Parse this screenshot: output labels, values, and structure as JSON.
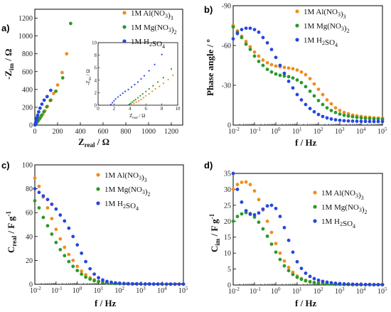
{
  "figure": {
    "panels": [
      "a)",
      "b)",
      "c)",
      "d)"
    ]
  },
  "colors": {
    "al": "#f28c1e",
    "mg": "#2a9a2a",
    "h2so4": "#2746e0"
  },
  "chart_data": [
    {
      "id": "a",
      "type": "scatter",
      "xlabel": "Z_real / Ω",
      "ylabel": "-Z_im / Ω",
      "xlim": [
        0,
        1300
      ],
      "ylim": [
        0,
        1300
      ],
      "xticks": [
        0,
        200,
        400,
        600,
        800,
        1000,
        1200
      ],
      "yticks": [
        0,
        200,
        400,
        600,
        800,
        1000,
        1200
      ],
      "legend": "top-right",
      "series": [
        {
          "name": "1M Al(NO3)3",
          "color": "#f28c1e",
          "x": [
            2,
            6,
            12,
            20,
            30,
            42,
            55,
            70,
            88,
            110,
            135,
            165,
            200,
            240,
            280
          ],
          "y": [
            2,
            8,
            18,
            32,
            48,
            68,
            92,
            122,
            160,
            210,
            275,
            355,
            450,
            590,
            800
          ]
        },
        {
          "name": "1M Mg(NO3)2",
          "color": "#2a9a2a",
          "x": [
            2,
            5,
            9,
            15,
            22,
            32,
            44,
            60,
            80,
            105,
            140,
            185,
            245,
            315
          ],
          "y": [
            2,
            7,
            14,
            26,
            40,
            58,
            80,
            110,
            150,
            205,
            280,
            380,
            530,
            1140
          ]
        },
        {
          "name": "1M H2SO4",
          "color": "#2746e0",
          "x": [
            2,
            4,
            6,
            9,
            13,
            18,
            25,
            34,
            46,
            62,
            82,
            108,
            140
          ],
          "y": [
            3,
            10,
            20,
            35,
            55,
            80,
            110,
            148,
            190,
            235,
            280,
            320,
            390
          ]
        }
      ],
      "inset": {
        "xlabel": "Z_real / Ω",
        "ylabel": "-Z_im / Ω",
        "xlim": [
          0,
          10
        ],
        "ylim": [
          0,
          10
        ],
        "xticks": [
          0,
          2,
          4,
          6,
          8,
          10
        ],
        "yticks": [
          0,
          2,
          4,
          6,
          8,
          10
        ],
        "series": [
          {
            "name": "1M Al(NO3)3",
            "color": "#f28c1e",
            "x": [
              4.2,
              4.5,
              4.8,
              5.1,
              5.4,
              5.7,
              6.0,
              6.4,
              6.8,
              7.2,
              7.7,
              8.2,
              8.8,
              9.4
            ],
            "y": [
              0.1,
              0.3,
              0.5,
              0.7,
              0.9,
              1.2,
              1.5,
              1.8,
              2.2,
              2.6,
              3.0,
              3.5,
              4.1,
              4.8
            ]
          },
          {
            "name": "1M Mg(NO3)2",
            "color": "#2a9a2a",
            "x": [
              3.9,
              4.1,
              4.3,
              4.5,
              4.7,
              5.0,
              5.3,
              5.6,
              6.0,
              6.4,
              6.9,
              7.5,
              8.2,
              9.2
            ],
            "y": [
              0.1,
              0.3,
              0.5,
              0.7,
              0.9,
              1.2,
              1.5,
              1.8,
              2.2,
              2.6,
              3.1,
              3.7,
              4.4,
              5.8
            ]
          },
          {
            "name": "1M H2SO4",
            "color": "#2746e0",
            "x": [
              1.6,
              1.8,
              2.0,
              2.2,
              2.5,
              2.8,
              3.1,
              3.4,
              3.8,
              4.2,
              4.6,
              5.0,
              5.4,
              5.8,
              6.4,
              7.1,
              8.0
            ],
            "y": [
              0.1,
              0.4,
              0.7,
              1.0,
              1.3,
              1.6,
              1.9,
              2.2,
              2.5,
              2.9,
              3.3,
              3.7,
              4.2,
              4.7,
              5.5,
              6.5,
              8.1
            ]
          }
        ]
      }
    },
    {
      "id": "b",
      "type": "scatter",
      "xscale": "log",
      "xlabel": "f / Hz",
      "ylabel": "Phase angle / º",
      "xlim": [
        0.01,
        100000
      ],
      "ylim": [
        0,
        -90
      ],
      "yticks": [
        0,
        -30,
        -60,
        -90
      ],
      "legend": "top-right",
      "series": [
        {
          "name": "1M Al(NO3)3",
          "color": "#f28c1e",
          "x": [
            0.01,
            0.0158,
            0.025,
            0.04,
            0.063,
            0.1,
            0.158,
            0.25,
            0.4,
            0.63,
            1,
            1.58,
            2.5,
            4,
            6.3,
            10,
            15.8,
            25,
            40,
            63,
            100,
            158,
            251,
            398,
            631,
            1000,
            1585,
            2512,
            3981,
            6310,
            10000,
            15849,
            25119,
            39811,
            63096,
            100000
          ],
          "y": [
            -75,
            -71,
            -67,
            -63,
            -59,
            -55,
            -52,
            -49,
            -47,
            -45.5,
            -44.5,
            -44,
            -43.5,
            -43,
            -42.5,
            -41.5,
            -40,
            -38,
            -35,
            -31,
            -27,
            -23,
            -19,
            -16,
            -13,
            -11,
            -9.5,
            -8.5,
            -7.5,
            -7,
            -6.5,
            -6,
            -5.8,
            -5.5,
            -5.3,
            -5.2
          ]
        },
        {
          "name": "1M Mg(NO3)2",
          "color": "#2a9a2a",
          "x": [
            0.01,
            0.0158,
            0.025,
            0.04,
            0.063,
            0.1,
            0.158,
            0.25,
            0.4,
            0.63,
            1,
            1.58,
            2.5,
            4,
            6.3,
            10,
            15.8,
            25,
            40,
            63,
            100,
            158,
            251,
            398,
            631,
            1000,
            1585,
            2512,
            3981,
            6310,
            10000,
            15849,
            25119,
            39811,
            63096,
            100000
          ],
          "y": [
            -74,
            -70,
            -66,
            -61,
            -57,
            -52,
            -48,
            -45,
            -42,
            -40,
            -38.5,
            -37.5,
            -37,
            -36.5,
            -35.5,
            -34,
            -32,
            -29,
            -25.5,
            -22,
            -18.5,
            -15.5,
            -13,
            -11,
            -9.5,
            -8.3,
            -7.4,
            -6.8,
            -6.3,
            -5.8,
            -5.4,
            -5.1,
            -4.9,
            -4.7,
            -4.6,
            -4.5
          ]
        },
        {
          "name": "1M H2SO4",
          "color": "#2746e0",
          "x": [
            0.01,
            0.0158,
            0.025,
            0.04,
            0.063,
            0.1,
            0.158,
            0.25,
            0.4,
            0.63,
            1,
            1.58,
            2.5,
            4,
            6.3,
            10,
            15.8,
            25,
            40,
            63,
            100,
            158,
            251,
            398,
            631,
            1000,
            1585,
            2512,
            3981,
            6310,
            10000,
            15849,
            25119,
            39811,
            63096,
            100000
          ],
          "y": [
            -65,
            -69,
            -72,
            -73,
            -73,
            -72,
            -70,
            -66,
            -62,
            -57,
            -51,
            -45,
            -39,
            -33,
            -28,
            -23,
            -19,
            -15.5,
            -12.5,
            -10,
            -8,
            -6.5,
            -5.4,
            -4.6,
            -4,
            -3.6,
            -3.3,
            -3.1,
            -3,
            -2.9,
            -2.8,
            -2.8,
            -2.7,
            -2.7,
            -2.7,
            -2.7
          ]
        }
      ]
    },
    {
      "id": "c",
      "type": "scatter",
      "xscale": "log",
      "xlabel": "f / Hz",
      "ylabel": "C_real / F g⁻¹",
      "xlim": [
        0.01,
        100000
      ],
      "ylim": [
        0,
        100
      ],
      "yticks": [
        0,
        20,
        40,
        60,
        80,
        100
      ],
      "legend": "top-right",
      "series": [
        {
          "name": "1M Al(NO3)3",
          "color": "#f28c1e",
          "x": [
            0.01,
            0.0158,
            0.025,
            0.04,
            0.063,
            0.1,
            0.158,
            0.25,
            0.4,
            0.63,
            1,
            1.58,
            2.5,
            4,
            6.3,
            10,
            15.8,
            25,
            40,
            63,
            100,
            158,
            251,
            398,
            631,
            1000,
            1585,
            2512,
            3981,
            6310,
            10000,
            15849,
            25119,
            39811,
            63096,
            100000
          ],
          "y": [
            89,
            82,
            73,
            64,
            55,
            46,
            38,
            31,
            25,
            20,
            15,
            11,
            8,
            5.5,
            3.8,
            2.6,
            1.8,
            1.3,
            1,
            0.8,
            0.6,
            0.5,
            0.4,
            0.35,
            0.3,
            0.25,
            0.2,
            0.2,
            0.2,
            0.15,
            0.15,
            0.1,
            0.1,
            0.1,
            0.1,
            0.1
          ]
        },
        {
          "name": "1M Mg(NO3)2",
          "color": "#2a9a2a",
          "x": [
            0.01,
            0.0158,
            0.025,
            0.04,
            0.063,
            0.1,
            0.158,
            0.25,
            0.4,
            0.63,
            1,
            1.58,
            2.5,
            4,
            6.3,
            10,
            15.8,
            25,
            40,
            63,
            100,
            158,
            251,
            398,
            631,
            1000,
            1585,
            2512,
            3981,
            6310,
            10000,
            15849,
            25119,
            39811,
            63096,
            100000
          ],
          "y": [
            70,
            64,
            56,
            49,
            42,
            35,
            29,
            24,
            19,
            15,
            11.5,
            8.5,
            6,
            4.3,
            3,
            2.1,
            1.5,
            1.1,
            0.8,
            0.6,
            0.5,
            0.4,
            0.3,
            0.25,
            0.2,
            0.2,
            0.15,
            0.15,
            0.1,
            0.1,
            0.1,
            0.1,
            0.1,
            0.1,
            0.1,
            0.1
          ]
        },
        {
          "name": "1M H2SO4",
          "color": "#2746e0",
          "x": [
            0.01,
            0.0158,
            0.025,
            0.04,
            0.063,
            0.1,
            0.158,
            0.25,
            0.4,
            0.63,
            1,
            1.58,
            2.5,
            4,
            6.3,
            10,
            15.8,
            25,
            40,
            63,
            100,
            158,
            251,
            398,
            631,
            1000,
            1585,
            2512,
            3981,
            6310,
            10000,
            15849,
            25119,
            39811,
            63096,
            100000
          ],
          "y": [
            80,
            77,
            74,
            71,
            67,
            63,
            58,
            53,
            47,
            40,
            33,
            26,
            19,
            13,
            8.5,
            5.5,
            3.6,
            2.4,
            1.7,
            1.2,
            0.9,
            0.7,
            0.55,
            0.45,
            0.4,
            0.35,
            0.3,
            0.25,
            0.2,
            0.2,
            0.2,
            0.15,
            0.15,
            0.15,
            0.1,
            0.1
          ]
        }
      ]
    },
    {
      "id": "d",
      "type": "scatter",
      "xscale": "log",
      "xlabel": "f / Hz",
      "ylabel": "C_im / F g⁻¹",
      "xlim": [
        0.01,
        100000
      ],
      "ylim": [
        0,
        35
      ],
      "yticks": [
        0,
        5,
        10,
        15,
        20,
        25,
        30,
        35
      ],
      "legend": "top-right",
      "series": [
        {
          "name": "1M Al(NO3)3",
          "color": "#f28c1e",
          "x": [
            0.01,
            0.0158,
            0.025,
            0.04,
            0.063,
            0.1,
            0.158,
            0.25,
            0.4,
            0.63,
            1,
            1.58,
            2.5,
            4,
            6.3,
            10,
            15.8,
            25,
            40,
            63,
            100,
            158,
            251,
            398,
            631,
            1000,
            1585,
            2512,
            3981,
            6310,
            10000,
            15849,
            25119,
            39811,
            63096,
            100000
          ],
          "y": [
            30,
            31.5,
            32.2,
            32.3,
            31.5,
            29.5,
            26.8,
            23.5,
            20,
            16.5,
            13,
            10,
            7.5,
            5.5,
            4,
            2.8,
            2,
            1.5,
            1.1,
            0.8,
            0.6,
            0.5,
            0.4,
            0.3,
            0.25,
            0.2,
            0.2,
            0.15,
            0.15,
            0.1,
            0.1,
            0.1,
            0.1,
            0.1,
            0.1,
            0.1
          ]
        },
        {
          "name": "1M Mg(NO3)2",
          "color": "#2a9a2a",
          "x": [
            0.01,
            0.0158,
            0.025,
            0.04,
            0.063,
            0.1,
            0.158,
            0.25,
            0.4,
            0.63,
            1,
            1.58,
            2.5,
            4,
            6.3,
            10,
            15.8,
            25,
            40,
            63,
            100,
            158,
            251,
            398,
            631,
            1000,
            1585,
            2512,
            3981,
            6310,
            10000,
            15849,
            25119,
            39811,
            63096,
            100000
          ],
          "y": [
            20,
            21.5,
            22.3,
            22.7,
            22.4,
            21.3,
            19.7,
            17.6,
            15.3,
            12.8,
            10.3,
            8,
            6,
            4.5,
            3.3,
            2.4,
            1.8,
            1.3,
            1,
            0.75,
            0.6,
            0.45,
            0.35,
            0.3,
            0.25,
            0.2,
            0.15,
            0.15,
            0.1,
            0.1,
            0.1,
            0.1,
            0.1,
            0.1,
            0.1,
            0.1
          ]
        },
        {
          "name": "1M H2SO4",
          "color": "#2746e0",
          "x": [
            0.01,
            0.0158,
            0.025,
            0.04,
            0.063,
            0.1,
            0.158,
            0.25,
            0.4,
            0.63,
            1,
            1.58,
            2.5,
            4,
            6.3,
            10,
            15.8,
            25,
            40,
            63,
            100,
            158,
            251,
            398,
            631,
            1000,
            1585,
            2512,
            3981,
            6310,
            10000,
            15849,
            25119,
            39811,
            63096,
            100000
          ],
          "y": [
            35,
            30,
            26,
            23.3,
            22.2,
            22,
            22.6,
            23.8,
            24.8,
            25,
            24,
            21.5,
            18,
            14,
            10.3,
            7.3,
            5.2,
            3.7,
            2.7,
            2,
            1.5,
            1.15,
            0.9,
            0.7,
            0.55,
            0.45,
            0.35,
            0.3,
            0.25,
            0.2,
            0.2,
            0.15,
            0.15,
            0.1,
            0.1,
            0.1
          ]
        }
      ]
    }
  ]
}
